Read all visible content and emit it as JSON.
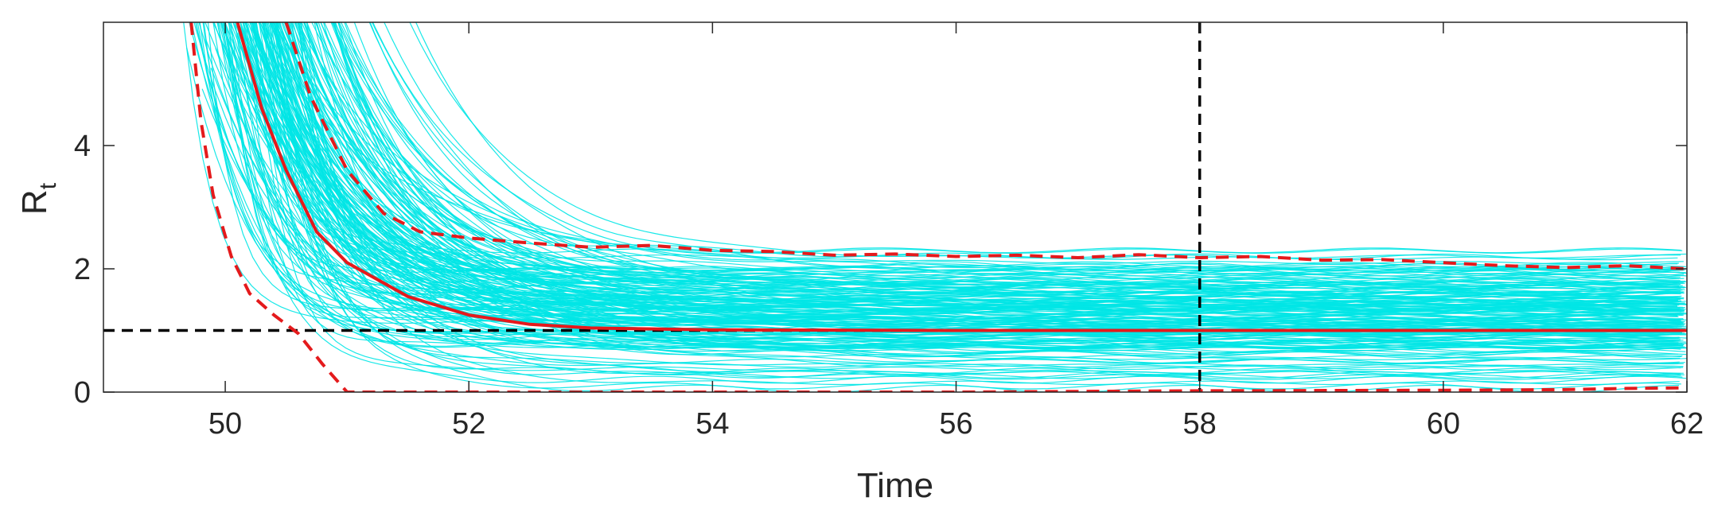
{
  "chart_data": {
    "type": "line",
    "title": "",
    "xlabel": "Time",
    "ylabel": {
      "main": "R",
      "sub": "t"
    },
    "xlim": [
      49,
      62
    ],
    "ylim": [
      0,
      6
    ],
    "xticks": [
      50,
      52,
      54,
      56,
      58,
      60,
      62
    ],
    "xtick_labels": [
      "50",
      "52",
      "54",
      "56",
      "58",
      "60",
      "62"
    ],
    "yticks": [
      0,
      2,
      4
    ],
    "ytick_labels": [
      "0",
      "2",
      "4"
    ],
    "grid": false,
    "legend": "none",
    "reference_lines": [
      {
        "orientation": "horizontal",
        "value": 1,
        "color": "#000000",
        "style": "dashed"
      },
      {
        "orientation": "vertical",
        "value": 58,
        "color": "#000000",
        "style": "dashed"
      }
    ],
    "series": [
      {
        "role": "median",
        "color": "#e41a1c",
        "style": "solid",
        "x": [
          50.1,
          50.3,
          50.5,
          50.75,
          51.0,
          51.5,
          52.0,
          52.5,
          53.0,
          54.0,
          56.0,
          58.0,
          60.0,
          62.0
        ],
        "y": [
          6.0,
          4.6,
          3.6,
          2.6,
          2.1,
          1.55,
          1.25,
          1.1,
          1.04,
          1.01,
          1.0,
          1.0,
          1.0,
          1.0
        ]
      },
      {
        "role": "upper-bound",
        "color": "#e41a1c",
        "style": "dashed",
        "x": [
          50.5,
          50.7,
          51.0,
          51.3,
          51.6,
          52.0,
          52.5,
          53.0,
          53.5,
          54.0,
          54.5,
          55.0,
          55.5,
          56.0,
          56.5,
          57.0,
          57.5,
          58.0,
          58.5,
          59.0,
          59.5,
          60.0,
          60.5,
          61.0,
          61.5,
          62.0
        ],
        "y": [
          6.0,
          4.8,
          3.6,
          2.9,
          2.6,
          2.5,
          2.42,
          2.35,
          2.38,
          2.3,
          2.28,
          2.22,
          2.24,
          2.2,
          2.22,
          2.18,
          2.23,
          2.18,
          2.2,
          2.14,
          2.15,
          2.1,
          2.05,
          2.02,
          2.05,
          2.0
        ]
      },
      {
        "role": "lower-bound",
        "color": "#e41a1c",
        "style": "dashed",
        "x": [
          49.72,
          49.8,
          49.9,
          50.05,
          50.2,
          50.4,
          50.6,
          50.8,
          51.0,
          53.0,
          56.0,
          58.0,
          60.0,
          61.0,
          61.5,
          62.0
        ],
        "y": [
          6.0,
          4.4,
          3.2,
          2.2,
          1.6,
          1.25,
          0.95,
          0.45,
          0.0,
          0.0,
          0.0,
          0.02,
          0.03,
          0.04,
          0.06,
          0.07
        ]
      }
    ],
    "ensemble": {
      "color": "#00e5e5",
      "style": "solid",
      "description_count": 200,
      "final_values": [
        0.05,
        0.1,
        0.15,
        0.2,
        0.3,
        0.4,
        0.5,
        0.6,
        0.7,
        0.8,
        0.85,
        0.9,
        0.95,
        1.0,
        1.05,
        1.1,
        1.15,
        1.2,
        1.25,
        1.3,
        1.35,
        1.4,
        1.45,
        1.5,
        1.55,
        1.6,
        1.7,
        1.8,
        1.9,
        2.0,
        2.1,
        2.2,
        2.3
      ]
    }
  }
}
